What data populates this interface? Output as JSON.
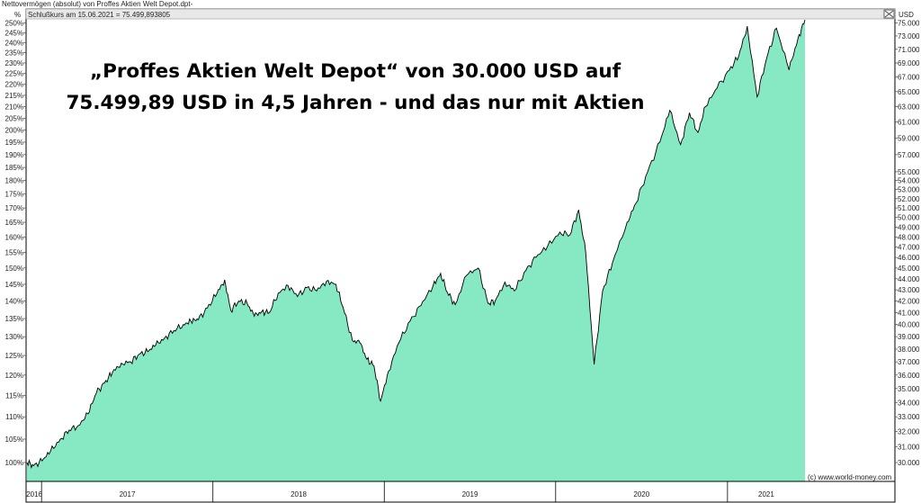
{
  "window": {
    "title": "Nettovermögen (absolut) von Proffes Aktien Welt Depot.dpt-",
    "close_glyph": "⊠"
  },
  "chart_data": {
    "type": "area",
    "headline": [
      "„Proffes Aktien Welt Depot“ von 30.000 USD auf",
      "75.499,89 USD in 4,5 Jahren - und das nur mit Aktien"
    ],
    "legend_text": "Schlußkurs am 15.06.2021 = 75.499,893805",
    "copyright": "(c) www.world-money.com",
    "left_axis": {
      "unit": "%",
      "ticks": [
        "100%",
        "105%",
        "110%",
        "115%",
        "120%",
        "125%",
        "130%",
        "135%",
        "140%",
        "145%",
        "150%",
        "155%",
        "160%",
        "165%",
        "170%",
        "175%",
        "180%",
        "185%",
        "190%",
        "195%",
        "200%",
        "205%",
        "210%",
        "215%",
        "220%",
        "225%",
        "230%",
        "235%",
        "240%",
        "245%",
        "250%"
      ]
    },
    "right_axis": {
      "unit": "USD",
      "scale": "log",
      "ticks": [
        "30.000",
        "31.000",
        "32.000",
        "33.000",
        "34.000",
        "35.000",
        "36.000",
        "37.000",
        "38.000",
        "39.000",
        "40.000",
        "41.000",
        "42.000",
        "43.000",
        "44.000",
        "45.000",
        "46.000",
        "47.000",
        "48.000",
        "49.000",
        "50.000",
        "51.000",
        "52.000",
        "53.000",
        "54.000",
        "55.000",
        "57.000",
        "59.000",
        "61.000",
        "63.000",
        "65.000",
        "67.000",
        "69.000",
        "71.000",
        "73.000",
        "75.000"
      ],
      "range": [
        30000,
        75500
      ]
    },
    "x_axis": {
      "labels": [
        "2016",
        "2017",
        "2018",
        "2019",
        "2020",
        "2021"
      ],
      "range": [
        "2016-12-01",
        "2021-06-15"
      ]
    },
    "series": [
      {
        "fill_color": "#86e9c4",
        "line_color": "#000000",
        "points": [
          [
            "2016-12-01",
            30000
          ],
          [
            "2016-12-15",
            29800
          ],
          [
            "2017-01-02",
            30100
          ],
          [
            "2017-01-20",
            30700
          ],
          [
            "2017-02-10",
            31500
          ],
          [
            "2017-03-01",
            32100
          ],
          [
            "2017-03-20",
            32400
          ],
          [
            "2017-04-10",
            33200
          ],
          [
            "2017-04-28",
            34700
          ],
          [
            "2017-05-15",
            35400
          ],
          [
            "2017-06-01",
            36200
          ],
          [
            "2017-06-20",
            36900
          ],
          [
            "2017-07-10",
            37000
          ],
          [
            "2017-07-28",
            37600
          ],
          [
            "2017-08-15",
            37800
          ],
          [
            "2017-09-01",
            38300
          ],
          [
            "2017-09-20",
            38900
          ],
          [
            "2017-10-10",
            39500
          ],
          [
            "2017-10-30",
            40000
          ],
          [
            "2017-11-15",
            40300
          ],
          [
            "2017-12-01",
            40400
          ],
          [
            "2017-12-20",
            41400
          ],
          [
            "2018-01-10",
            42700
          ],
          [
            "2018-01-26",
            43900
          ],
          [
            "2018-02-08",
            41200
          ],
          [
            "2018-02-25",
            42000
          ],
          [
            "2018-03-15",
            41800
          ],
          [
            "2018-03-30",
            40700
          ],
          [
            "2018-04-15",
            41100
          ],
          [
            "2018-05-01",
            41000
          ],
          [
            "2018-05-20",
            42700
          ],
          [
            "2018-06-10",
            43400
          ],
          [
            "2018-06-30",
            42400
          ],
          [
            "2018-07-20",
            43200
          ],
          [
            "2018-08-10",
            42900
          ],
          [
            "2018-08-31",
            43800
          ],
          [
            "2018-09-20",
            43500
          ],
          [
            "2018-10-05",
            41500
          ],
          [
            "2018-10-25",
            38700
          ],
          [
            "2018-11-10",
            38500
          ],
          [
            "2018-11-25",
            37200
          ],
          [
            "2018-12-10",
            36700
          ],
          [
            "2018-12-24",
            34100
          ],
          [
            "2019-01-10",
            36300
          ],
          [
            "2019-02-01",
            38500
          ],
          [
            "2019-02-25",
            40300
          ],
          [
            "2019-03-20",
            41600
          ],
          [
            "2019-04-15",
            43400
          ],
          [
            "2019-05-01",
            44500
          ],
          [
            "2019-05-15",
            42800
          ],
          [
            "2019-06-01",
            41700
          ],
          [
            "2019-06-25",
            44300
          ],
          [
            "2019-07-20",
            45000
          ],
          [
            "2019-08-10",
            41800
          ],
          [
            "2019-08-25",
            42000
          ],
          [
            "2019-09-15",
            43700
          ],
          [
            "2019-10-05",
            42900
          ],
          [
            "2019-10-30",
            44800
          ],
          [
            "2019-11-20",
            46000
          ],
          [
            "2019-12-15",
            47100
          ],
          [
            "2020-01-10",
            48500
          ],
          [
            "2020-01-31",
            48200
          ],
          [
            "2020-02-19",
            50800
          ],
          [
            "2020-03-05",
            46500
          ],
          [
            "2020-03-23",
            36800
          ],
          [
            "2020-04-10",
            42900
          ],
          [
            "2020-05-01",
            45500
          ],
          [
            "2020-06-01",
            49500
          ],
          [
            "2020-06-20",
            51500
          ],
          [
            "2020-07-15",
            55000
          ],
          [
            "2020-08-10",
            58500
          ],
          [
            "2020-08-31",
            62500
          ],
          [
            "2020-09-23",
            58200
          ],
          [
            "2020-10-12",
            62200
          ],
          [
            "2020-10-30",
            59700
          ],
          [
            "2020-11-15",
            63000
          ],
          [
            "2020-12-10",
            65500
          ],
          [
            "2021-01-05",
            68000
          ],
          [
            "2021-01-25",
            70000
          ],
          [
            "2021-02-12",
            74500
          ],
          [
            "2021-03-05",
            64300
          ],
          [
            "2021-03-25",
            69600
          ],
          [
            "2021-04-15",
            74200
          ],
          [
            "2021-05-12",
            68000
          ],
          [
            "2021-05-31",
            72600
          ],
          [
            "2021-06-15",
            75500
          ]
        ]
      }
    ],
    "grid": false,
    "legend": "top-left"
  }
}
